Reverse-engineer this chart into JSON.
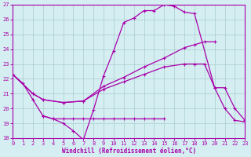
{
  "xlabel": "Windchill (Refroidissement éolien,°C)",
  "bg_color": "#d4eef2",
  "grid_color": "#aacccc",
  "line_color": "#aa00aa",
  "xlim": [
    0,
    23
  ],
  "ylim": [
    18,
    27
  ],
  "xticks": [
    0,
    1,
    2,
    3,
    4,
    5,
    6,
    7,
    8,
    9,
    10,
    11,
    12,
    13,
    14,
    15,
    16,
    17,
    18,
    19,
    20,
    21,
    22,
    23
  ],
  "yticks": [
    18,
    19,
    20,
    21,
    22,
    23,
    24,
    25,
    26,
    27
  ],
  "line1_x": [
    0,
    1,
    2,
    3,
    4,
    5,
    6,
    7,
    8,
    9,
    10,
    11,
    12,
    13,
    14,
    15,
    16,
    17,
    18,
    20,
    21,
    22,
    23
  ],
  "line1_y": [
    22.3,
    21.7,
    20.6,
    19.5,
    19.3,
    19.0,
    18.5,
    17.9,
    19.9,
    22.2,
    23.9,
    25.8,
    26.1,
    26.6,
    26.6,
    27.0,
    26.9,
    26.5,
    26.4,
    21.4,
    20.0,
    19.2,
    19.1
  ],
  "line2_x": [
    3,
    4,
    5,
    6,
    7,
    8,
    9,
    10,
    11,
    12,
    13,
    14,
    15
  ],
  "line2_y": [
    19.5,
    19.3,
    19.3,
    19.3,
    19.3,
    19.3,
    19.3,
    19.3,
    19.3,
    19.3,
    19.3,
    19.3,
    19.3
  ],
  "line3_x": [
    0,
    2,
    3,
    5,
    7,
    9,
    11,
    13,
    15,
    17,
    18,
    19,
    20
  ],
  "line3_y": [
    22.3,
    21.0,
    20.6,
    20.4,
    20.5,
    21.5,
    22.1,
    22.8,
    23.4,
    24.1,
    24.3,
    24.5,
    24.5
  ],
  "line4_x": [
    0,
    2,
    3,
    5,
    7,
    9,
    11,
    13,
    15,
    17,
    18,
    19,
    20,
    21,
    22,
    23
  ],
  "line4_y": [
    22.3,
    21.0,
    20.6,
    20.4,
    20.5,
    21.3,
    21.8,
    22.3,
    22.8,
    23.0,
    23.0,
    23.0,
    21.4,
    21.4,
    20.0,
    19.2
  ]
}
